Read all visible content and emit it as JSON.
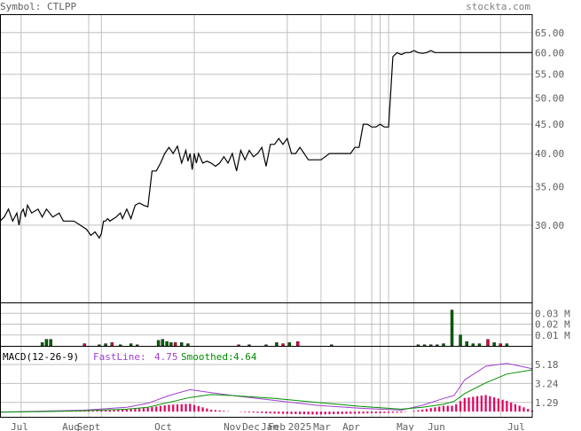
{
  "header": {
    "symbol_label": "Symbol: CTLPP",
    "site_label": "stockta.com"
  },
  "colors": {
    "frame": "#000000",
    "grid": "#c0c0c0",
    "price_line": "#000000",
    "volume_up": "#006400",
    "volume_down": "#e4003a",
    "macd_hist": "#e00060",
    "fast_line": "#a040d0",
    "smoothed_line": "#009000",
    "text": "#606060",
    "site_text": "#808080"
  },
  "chart_data": [
    {
      "type": "line",
      "panel": "price",
      "x_labels": [
        "Jul",
        "Aug",
        "Sept",
        "Oct",
        "Nov",
        "Dec",
        "Jan",
        "Feb",
        "2025",
        "Mar",
        "Apr",
        "May",
        "Jun",
        "Jul"
      ],
      "y_ticks": [
        "65.00",
        "60.00",
        "55.00",
        "50.00",
        "45.00",
        "40.00",
        "35.00",
        "30.00"
      ],
      "log_scale": true,
      "ylim": [
        22,
        70
      ],
      "x": [
        0,
        2,
        4,
        6,
        8,
        9,
        10,
        11,
        12,
        13,
        15,
        18,
        20,
        22,
        25,
        28,
        30,
        32,
        35,
        38,
        41,
        43,
        45,
        47,
        48,
        49,
        50,
        51,
        52,
        55,
        57,
        58,
        60,
        62,
        64,
        66,
        68,
        70,
        72,
        74,
        76,
        78,
        80,
        82,
        84,
        86,
        88,
        89,
        90,
        91,
        92,
        93,
        94,
        96,
        98,
        100,
        102,
        104,
        106,
        108,
        110,
        112,
        114,
        116,
        118,
        120,
        122,
        124,
        126,
        128,
        130,
        132,
        134,
        136,
        138,
        140,
        142,
        144,
        146,
        148,
        150,
        152,
        154,
        156,
        158,
        160,
        162,
        164,
        166,
        168,
        170,
        172,
        174,
        176,
        178,
        180,
        182,
        184,
        186,
        188,
        190,
        192,
        194,
        196,
        198,
        200,
        202,
        204,
        206,
        208,
        210,
        212,
        214,
        216,
        218,
        220,
        222,
        224,
        226,
        228,
        230,
        232,
        234,
        236,
        238,
        240,
        242,
        244,
        246,
        248,
        250,
        252
      ],
      "values": [
        30.5,
        31,
        32,
        30.5,
        31.5,
        30,
        31.5,
        32,
        31,
        32.5,
        31.5,
        32,
        31,
        32,
        31,
        31.5,
        30.5,
        30.5,
        30.5,
        30,
        29.5,
        28.8,
        29.2,
        28.5,
        29,
        30.5,
        30.5,
        30.8,
        30.5,
        31,
        31.5,
        30.8,
        32,
        30.8,
        32.5,
        32.8,
        32.5,
        32.3,
        37.3,
        37.3,
        38.5,
        40,
        41,
        40,
        41.2,
        38.5,
        40.5,
        38.8,
        40,
        37.5,
        40,
        38.5,
        40,
        38.5,
        38.8,
        38.5,
        38,
        38.5,
        39.5,
        38.5,
        40,
        37.3,
        40.5,
        39,
        40.5,
        39.5,
        40,
        41,
        38,
        41.5,
        41.5,
        42.5,
        41.5,
        42.5,
        40,
        40,
        41,
        40,
        39,
        39,
        39,
        39,
        39.5,
        40,
        40,
        40,
        40,
        40,
        40,
        41,
        41,
        45,
        45,
        44.5,
        44.5,
        45,
        44.5,
        44.5,
        59,
        60,
        59.5,
        60,
        60,
        60.5,
        60,
        59.8,
        60,
        60.5,
        60,
        60,
        60,
        60,
        60,
        60,
        60,
        60,
        60,
        60,
        60,
        60,
        60,
        60,
        60,
        60,
        60,
        60,
        60,
        60,
        60,
        60,
        60,
        60
      ]
    },
    {
      "type": "bar",
      "panel": "volume",
      "y_ticks": [
        "0.03 M",
        "0.02 M",
        "0.01 M"
      ],
      "ylim": [
        0,
        0.04
      ],
      "bars": [
        {
          "i": 20,
          "v": 0.003,
          "up": true
        },
        {
          "i": 22,
          "v": 0.006,
          "up": true
        },
        {
          "i": 24,
          "v": 0.006,
          "up": true
        },
        {
          "i": 40,
          "v": 0.002,
          "up": false
        },
        {
          "i": 47,
          "v": 0.001,
          "up": true
        },
        {
          "i": 50,
          "v": 0.002,
          "up": true
        },
        {
          "i": 53,
          "v": 0.003,
          "up": false
        },
        {
          "i": 57,
          "v": 0.001,
          "up": true
        },
        {
          "i": 62,
          "v": 0.002,
          "up": true
        },
        {
          "i": 65,
          "v": 0.001,
          "up": true
        },
        {
          "i": 75,
          "v": 0.005,
          "up": true
        },
        {
          "i": 77,
          "v": 0.006,
          "up": true
        },
        {
          "i": 79,
          "v": 0.004,
          "up": true
        },
        {
          "i": 81,
          "v": 0.003,
          "up": true
        },
        {
          "i": 83,
          "v": 0.003,
          "up": false
        },
        {
          "i": 86,
          "v": 0.003,
          "up": true
        },
        {
          "i": 89,
          "v": 0.002,
          "up": true
        },
        {
          "i": 113,
          "v": 0.001,
          "up": false
        },
        {
          "i": 118,
          "v": 0.001,
          "up": true
        },
        {
          "i": 126,
          "v": 0.001,
          "up": true
        },
        {
          "i": 131,
          "v": 0.003,
          "up": true
        },
        {
          "i": 134,
          "v": 0.002,
          "up": false
        },
        {
          "i": 137,
          "v": 0.003,
          "up": true
        },
        {
          "i": 141,
          "v": 0.004,
          "up": false
        },
        {
          "i": 157,
          "v": 0.001,
          "up": true
        },
        {
          "i": 198,
          "v": 0.001,
          "up": true
        },
        {
          "i": 201,
          "v": 0.001,
          "up": true
        },
        {
          "i": 204,
          "v": 0.001,
          "up": true
        },
        {
          "i": 207,
          "v": 0.001,
          "up": true
        },
        {
          "i": 210,
          "v": 0.002,
          "up": true
        },
        {
          "i": 214,
          "v": 0.033,
          "up": true
        },
        {
          "i": 218,
          "v": 0.01,
          "up": true
        },
        {
          "i": 221,
          "v": 0.004,
          "up": true
        },
        {
          "i": 224,
          "v": 0.002,
          "up": true
        },
        {
          "i": 227,
          "v": 0.002,
          "up": true
        },
        {
          "i": 231,
          "v": 0.006,
          "up": false
        },
        {
          "i": 234,
          "v": 0.003,
          "up": true
        },
        {
          "i": 237,
          "v": 0.002,
          "up": false
        },
        {
          "i": 240,
          "v": 0.002,
          "up": true
        }
      ]
    },
    {
      "type": "line",
      "panel": "macd",
      "title": "MACD(12-26-9)",
      "fast_label": "FastLine:",
      "fast_value": "4.75",
      "smoothed_label": "Smoothed:",
      "smoothed_value": "4.64",
      "y_ticks": [
        "5.18",
        "3.24",
        "1.29"
      ],
      "ylim": [
        0,
        6
      ],
      "x": [
        0,
        20,
        40,
        60,
        70,
        80,
        90,
        100,
        110,
        130,
        150,
        170,
        190,
        200,
        210,
        215,
        220,
        230,
        240,
        252
      ],
      "fast": [
        0.3,
        0.4,
        0.5,
        0.8,
        1.2,
        2.0,
        2.6,
        2.3,
        2.0,
        1.5,
        1.0,
        0.7,
        0.5,
        1.0,
        1.7,
        2.0,
        3.6,
        5.0,
        5.3,
        4.75
      ],
      "smoothed": [
        0.3,
        0.35,
        0.45,
        0.6,
        0.8,
        1.3,
        1.8,
        2.1,
        2.0,
        1.7,
        1.3,
        0.9,
        0.6,
        0.8,
        1.1,
        1.4,
        2.2,
        3.3,
        4.2,
        4.64
      ],
      "hist": [
        0.0,
        0.05,
        0.05,
        0.2,
        0.4,
        0.7,
        0.8,
        0.2,
        0.0,
        -0.2,
        -0.3,
        -0.2,
        -0.1,
        0.2,
        0.6,
        0.6,
        1.4,
        1.7,
        1.1,
        0.11
      ]
    }
  ]
}
